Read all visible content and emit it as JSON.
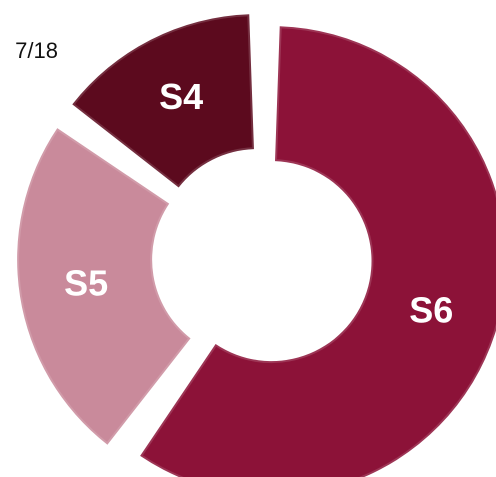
{
  "chart_data": {
    "type": "donut",
    "title": "7/18",
    "categories": [
      "S6",
      "S5",
      "S4"
    ],
    "values": [
      60,
      25,
      15
    ],
    "colors": [
      "#8c1238",
      "#c98a9b",
      "#5c0a1e"
    ]
  }
}
